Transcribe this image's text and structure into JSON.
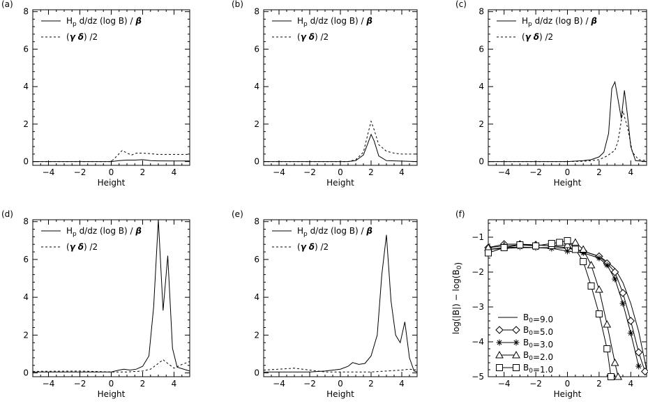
{
  "chart_data": [
    {
      "panel": "(a)",
      "type": "line",
      "xlabel": "Height",
      "ylabel": "",
      "xlim": [
        -5,
        5
      ],
      "ylim": [
        -0.2,
        8.1
      ],
      "xticks": [
        -4,
        -2,
        0,
        2,
        4
      ],
      "yticks": [
        0,
        2,
        4,
        6,
        8
      ],
      "legend": [
        "Hₚ d/dz (log B) / β",
        "(γ δ) /2"
      ],
      "series": [
        {
          "name": "Hₚ d/dz (log B) / β",
          "style": "solid",
          "x": [
            -5,
            0,
            0.5,
            1,
            1.5,
            2,
            2.5,
            3,
            4,
            5
          ],
          "y": [
            0,
            0,
            0.05,
            0.08,
            0.08,
            0.1,
            0.05,
            0.04,
            0.03,
            0.03
          ]
        },
        {
          "name": "(γ δ) /2",
          "style": "dashed",
          "x": [
            -5,
            0,
            0.3,
            0.7,
            1,
            1.3,
            1.6,
            2,
            2.5,
            3,
            4,
            5
          ],
          "y": [
            0,
            0,
            0.25,
            0.6,
            0.45,
            0.35,
            0.45,
            0.45,
            0.42,
            0.38,
            0.38,
            0.38
          ]
        }
      ]
    },
    {
      "panel": "(b)",
      "type": "line",
      "xlabel": "Height",
      "ylabel": "",
      "xlim": [
        -5,
        5
      ],
      "ylim": [
        -0.2,
        8.1
      ],
      "xticks": [
        -4,
        -2,
        0,
        2,
        4
      ],
      "yticks": [
        0,
        2,
        4,
        6,
        8
      ],
      "legend": [
        "Hₚ d/dz (log B) / β",
        "(γ δ) /2"
      ],
      "series": [
        {
          "name": "Hₚ d/dz (log B) / β",
          "style": "solid",
          "x": [
            -5,
            0.5,
            1.0,
            1.5,
            1.8,
            2.0,
            2.2,
            2.5,
            3.0,
            5
          ],
          "y": [
            0,
            0,
            0.05,
            0.35,
            1.0,
            1.45,
            1.1,
            0.3,
            0.05,
            0
          ]
        },
        {
          "name": "(γ δ) /2",
          "style": "dashed",
          "x": [
            -5,
            0.5,
            1.0,
            1.5,
            1.8,
            2.0,
            2.2,
            2.5,
            3.0,
            3.5,
            4,
            5
          ],
          "y": [
            0,
            0,
            0.1,
            0.5,
            1.5,
            2.15,
            1.7,
            0.9,
            0.55,
            0.45,
            0.4,
            0.4
          ]
        }
      ]
    },
    {
      "panel": "(c)",
      "type": "line",
      "xlabel": "Height",
      "ylabel": "",
      "xlim": [
        -5,
        5
      ],
      "ylim": [
        -0.2,
        8.1
      ],
      "xticks": [
        -4,
        -2,
        0,
        2,
        4
      ],
      "yticks": [
        0,
        2,
        4,
        6,
        8
      ],
      "legend": [
        "Hₚ d/dz (log B) / β",
        "(γ δ) /2"
      ],
      "series": [
        {
          "name": "Hₚ d/dz (log B) / β",
          "style": "solid",
          "x": [
            -5,
            0,
            1,
            1.5,
            2.0,
            2.3,
            2.6,
            2.8,
            3.0,
            3.2,
            3.4,
            3.6,
            3.8,
            4.0,
            4.3,
            5
          ],
          "y": [
            0,
            0,
            0.05,
            0.1,
            0.25,
            0.5,
            1.5,
            3.9,
            4.25,
            3.3,
            2.3,
            3.8,
            2.4,
            0.8,
            0.05,
            0
          ]
        },
        {
          "name": "(γ δ) /2",
          "style": "dashed",
          "x": [
            -5,
            0,
            1,
            1.5,
            2.0,
            2.5,
            3.0,
            3.2,
            3.5,
            3.8,
            4.1,
            4.5,
            5
          ],
          "y": [
            0,
            0,
            0.02,
            0.05,
            0.1,
            0.3,
            0.6,
            1.1,
            2.7,
            1.8,
            0.5,
            0.1,
            0.05
          ]
        }
      ]
    },
    {
      "panel": "(d)",
      "type": "line",
      "xlabel": "Height",
      "ylabel": "",
      "xlim": [
        -5,
        5
      ],
      "ylim": [
        -0.2,
        8.1
      ],
      "xticks": [
        -4,
        -2,
        0,
        2,
        4
      ],
      "yticks": [
        0,
        2,
        4,
        6,
        8
      ],
      "legend": [
        "Hₚ d/dz (log B) / β",
        "(γ δ) /2"
      ],
      "series": [
        {
          "name": "Hₚ d/dz (log B) / β",
          "style": "solid",
          "x": [
            -5,
            -1,
            0,
            0.5,
            0.8,
            1.2,
            1.6,
            2.0,
            2.4,
            2.7,
            3.0,
            3.3,
            3.6,
            3.9,
            4.2,
            5
          ],
          "y": [
            0.05,
            0.05,
            0.05,
            0.15,
            0.2,
            0.15,
            0.2,
            0.35,
            0.9,
            3.5,
            8.1,
            3.3,
            6.2,
            1.3,
            0.3,
            0.1
          ]
        },
        {
          "name": "(γ δ) /2",
          "style": "dashed",
          "x": [
            -5,
            -2,
            0,
            1,
            2,
            2.5,
            3.0,
            3.3,
            3.6,
            4.0,
            4.5,
            5
          ],
          "y": [
            0.08,
            0.1,
            0.05,
            0.05,
            0.1,
            0.2,
            0.5,
            0.7,
            0.5,
            0.25,
            0.45,
            0.6
          ]
        }
      ]
    },
    {
      "panel": "(e)",
      "type": "line",
      "xlabel": "Height",
      "ylabel": "",
      "xlim": [
        -5,
        5
      ],
      "ylim": [
        -0.2,
        8.1
      ],
      "xticks": [
        -4,
        -2,
        0,
        2,
        4
      ],
      "yticks": [
        0,
        2,
        4,
        6,
        8
      ],
      "legend": [
        "Hₚ d/dz (log B) / β",
        "(γ δ) /2"
      ],
      "series": [
        {
          "name": "Hₚ d/dz (log B) / β",
          "style": "solid",
          "x": [
            -5,
            -3,
            -2,
            -1,
            0,
            0.5,
            0.8,
            1.2,
            1.6,
            2.0,
            2.4,
            2.7,
            3.0,
            3.3,
            3.6,
            3.9,
            4.2,
            4.5,
            4.8,
            5
          ],
          "y": [
            0.05,
            0.05,
            0.05,
            0.1,
            0.2,
            0.35,
            0.55,
            0.45,
            0.5,
            0.9,
            2.0,
            5.2,
            7.3,
            3.8,
            2.0,
            1.6,
            2.7,
            0.8,
            0.1,
            0.05
          ]
        },
        {
          "name": "(γ δ) /2",
          "style": "dashed",
          "x": [
            -5,
            -4,
            -3,
            -2,
            -1,
            0,
            1,
            2,
            3,
            4,
            4.5,
            5
          ],
          "y": [
            0.15,
            0.2,
            0.25,
            0.15,
            0.05,
            0.05,
            0.05,
            0.05,
            0.1,
            0.15,
            0.2,
            0.15
          ]
        }
      ]
    },
    {
      "panel": "(f)",
      "type": "line",
      "xlabel": "Height",
      "ylabel": "log(|B|) − log(B₀)",
      "xlim": [
        -5,
        5
      ],
      "ylim": [
        -5,
        -0.5
      ],
      "xticks": [
        -4,
        -2,
        0,
        2,
        4
      ],
      "yticks": [
        -1,
        -2,
        -3,
        -4,
        -5
      ],
      "legend_position": "lower-left",
      "legend": [
        "B₀=9.0",
        "B₀=5.0",
        "B₀=3.0",
        "B₀=2.0",
        "B₀=1.0"
      ],
      "series": [
        {
          "name": "B₀=9.0",
          "marker": "none",
          "x": [
            -5,
            -3,
            -1,
            0,
            1,
            2,
            2.5,
            3,
            3.5,
            4,
            4.5,
            5
          ],
          "y": [
            -1.35,
            -1.3,
            -1.3,
            -1.32,
            -1.4,
            -1.55,
            -1.7,
            -1.9,
            -2.3,
            -2.9,
            -3.7,
            -4.8
          ]
        },
        {
          "name": "B₀=5.0",
          "marker": "diamond",
          "x": [
            -5,
            -4,
            -3,
            -2,
            -1,
            0,
            1,
            2,
            2.5,
            3,
            3.5,
            4,
            4.5,
            4.9
          ],
          "y": [
            -1.3,
            -1.2,
            -1.2,
            -1.22,
            -1.25,
            -1.3,
            -1.4,
            -1.55,
            -1.75,
            -2.0,
            -2.6,
            -3.4,
            -4.3,
            -4.85
          ]
        },
        {
          "name": "B₀=3.0",
          "marker": "asterisk",
          "x": [
            -5,
            -4,
            -3,
            -2,
            -1,
            0,
            1,
            2,
            2.5,
            3,
            3.5,
            4,
            4.5
          ],
          "y": [
            -1.35,
            -1.3,
            -1.28,
            -1.3,
            -1.32,
            -1.4,
            -1.45,
            -1.6,
            -1.8,
            -2.2,
            -2.9,
            -3.75,
            -4.7
          ]
        },
        {
          "name": "B₀=2.0",
          "marker": "triangle",
          "x": [
            -5,
            -4,
            -3,
            -2,
            -1,
            0,
            0.5,
            1,
            1.5,
            2,
            2.5,
            3,
            3.2
          ],
          "y": [
            -1.3,
            -1.25,
            -1.22,
            -1.22,
            -1.25,
            -1.22,
            -1.15,
            -1.35,
            -1.8,
            -2.5,
            -3.5,
            -4.6,
            -5.0
          ]
        },
        {
          "name": "B₀=1.0",
          "marker": "square",
          "x": [
            -5,
            -4,
            -3,
            -2,
            -1,
            -0.5,
            0,
            0.5,
            1,
            1.5,
            2,
            2.5,
            2.75
          ],
          "y": [
            -1.45,
            -1.3,
            -1.22,
            -1.25,
            -1.18,
            -1.15,
            -1.1,
            -1.35,
            -1.7,
            -2.4,
            -3.2,
            -4.2,
            -5.0
          ]
        }
      ]
    }
  ]
}
